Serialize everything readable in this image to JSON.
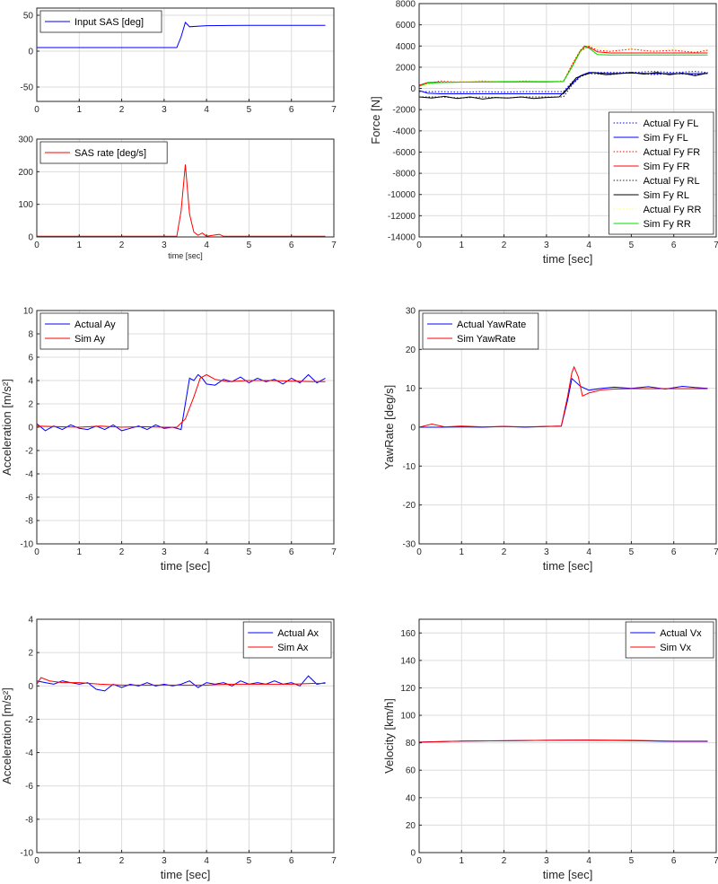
{
  "chart_data": [
    {
      "id": "input-sas",
      "type": "line",
      "xlabel": "",
      "ylabel": "",
      "xlim": [
        0,
        7
      ],
      "ylim": [
        -70,
        60
      ],
      "xticks": [
        0,
        1,
        2,
        3,
        4,
        5,
        6,
        7
      ],
      "yticks": [
        -50,
        0,
        50
      ],
      "grid": true,
      "legend_position": "top-left",
      "series": [
        {
          "name": "Input SAS [deg]",
          "color": "#0000ff",
          "style": "solid",
          "x": [
            0,
            3.3,
            3.4,
            3.5,
            3.55,
            3.6,
            4.0,
            5.0,
            6.0,
            6.8
          ],
          "y": [
            5,
            5,
            20,
            40,
            37,
            34,
            35.5,
            36,
            36,
            36
          ]
        }
      ]
    },
    {
      "id": "sas-rate",
      "type": "line",
      "xlabel": "time [sec]",
      "ylabel": "",
      "xlim": [
        0,
        7
      ],
      "ylim": [
        0,
        300
      ],
      "xticks": [
        0,
        1,
        2,
        3,
        4,
        5,
        6,
        7
      ],
      "yticks": [
        0,
        100,
        200,
        300
      ],
      "grid": true,
      "legend_position": "top-left",
      "series": [
        {
          "name": "SAS rate [deg/s]",
          "color": "#ff0000",
          "style": "solid",
          "x": [
            0,
            3.3,
            3.4,
            3.5,
            3.6,
            3.7,
            3.8,
            3.9,
            4.0,
            4.1,
            4.3,
            4.4,
            6.8
          ],
          "y": [
            2,
            2,
            80,
            222,
            70,
            15,
            5,
            12,
            2,
            4,
            8,
            2,
            2
          ]
        }
      ]
    },
    {
      "id": "force-fy",
      "type": "line",
      "xlabel": "time [sec]",
      "ylabel": "Force [N]",
      "xlim": [
        0,
        7
      ],
      "ylim": [
        -14000,
        8000
      ],
      "xticks": [
        0,
        1,
        2,
        3,
        4,
        5,
        6,
        7
      ],
      "yticks": [
        -14000,
        -12000,
        -10000,
        -8000,
        -6000,
        -4000,
        -2000,
        0,
        2000,
        4000,
        6000,
        8000
      ],
      "grid": true,
      "legend_position": "bottom-right",
      "series": [
        {
          "name": "Actual Fy FL",
          "color": "#0000ff",
          "style": "dotted",
          "x": [
            0,
            0.5,
            1,
            1.5,
            2,
            2.5,
            3,
            3.4,
            3.6,
            3.8,
            4,
            4.5,
            5,
            5.5,
            6,
            6.5,
            6.8
          ],
          "y": [
            -300,
            -300,
            -350,
            -300,
            -350,
            -300,
            -300,
            -300,
            600,
            1200,
            1500,
            1500,
            1500,
            1600,
            1500,
            1600,
            1500
          ]
        },
        {
          "name": "Sim Fy FL",
          "color": "#0000ff",
          "style": "solid",
          "x": [
            0,
            0.2,
            0.5,
            1,
            1.5,
            2,
            2.5,
            3,
            3.4,
            3.6,
            3.8,
            4,
            4.5,
            5,
            5.5,
            6,
            6.5,
            6.8
          ],
          "y": [
            -200,
            -450,
            -500,
            -500,
            -500,
            -500,
            -500,
            -500,
            -500,
            400,
            1200,
            1500,
            1400,
            1450,
            1400,
            1400,
            1400,
            1400
          ]
        },
        {
          "name": "Actual Fy FR",
          "color": "#ff0000",
          "style": "dotted",
          "x": [
            0,
            0.5,
            1,
            1.5,
            2,
            2.5,
            3,
            3.4,
            3.6,
            3.8,
            4,
            4.2,
            4.5,
            5,
            5.5,
            6,
            6.5,
            6.8
          ],
          "y": [
            300,
            700,
            650,
            700,
            650,
            700,
            650,
            700,
            2000,
            3500,
            4000,
            3600,
            3500,
            3700,
            3500,
            3600,
            3400,
            3600
          ]
        },
        {
          "name": "Sim Fy FR",
          "color": "#ff0000",
          "style": "solid",
          "x": [
            0,
            0.2,
            0.5,
            1,
            1.5,
            2,
            2.5,
            3,
            3.4,
            3.6,
            3.8,
            3.9,
            4,
            4.2,
            4.5,
            5,
            5.5,
            6,
            6.5,
            6.8
          ],
          "y": [
            300,
            550,
            600,
            600,
            620,
            620,
            620,
            620,
            650,
            2200,
            3600,
            4000,
            3900,
            3450,
            3350,
            3350,
            3350,
            3350,
            3350,
            3350
          ]
        },
        {
          "name": "Actual Fy RL",
          "color": "#222222",
          "style": "dotted",
          "x": [
            0,
            0.5,
            1,
            1.5,
            2,
            2.5,
            3,
            3.4,
            3.6,
            3.8,
            4,
            4.5,
            5,
            5.5,
            6,
            6.5,
            6.8
          ],
          "y": [
            -800,
            -800,
            -900,
            -800,
            -900,
            -800,
            -800,
            -800,
            300,
            1100,
            1400,
            1300,
            1500,
            1300,
            1400,
            1300,
            1500
          ]
        },
        {
          "name": "Sim Fy RL",
          "color": "#000000",
          "style": "solid",
          "x": [
            0,
            0.3,
            0.6,
            0.9,
            1.2,
            1.5,
            1.8,
            2.1,
            2.4,
            2.7,
            3.0,
            3.3,
            3.5,
            3.7,
            3.9,
            4.1,
            4.4,
            4.7,
            5.0,
            5.3,
            5.6,
            5.9,
            6.2,
            6.5,
            6.8
          ],
          "y": [
            -800,
            -900,
            -750,
            -950,
            -800,
            -1000,
            -850,
            -900,
            -800,
            -950,
            -850,
            -800,
            0,
            1000,
            1300,
            1500,
            1300,
            1400,
            1500,
            1350,
            1500,
            1300,
            1450,
            1200,
            1450
          ]
        },
        {
          "name": "Actual Fy RR",
          "color": "#ffff66",
          "style": "dotted",
          "x": [
            0,
            0.5,
            1,
            1.5,
            2,
            2.5,
            3,
            3.4,
            3.6,
            3.8,
            4,
            4.5,
            5,
            5.5,
            6,
            6.5,
            6.8
          ],
          "y": [
            200,
            600,
            700,
            650,
            700,
            650,
            700,
            650,
            2200,
            3700,
            4100,
            3600,
            3700,
            3600,
            3700,
            3600,
            3700
          ]
        },
        {
          "name": "Sim Fy RR",
          "color": "#00dd00",
          "style": "solid",
          "x": [
            0,
            0.2,
            0.5,
            1,
            1.5,
            2,
            2.5,
            3,
            3.4,
            3.6,
            3.8,
            3.9,
            4,
            4.2,
            4.5,
            5,
            5.5,
            6,
            6.5,
            6.8
          ],
          "y": [
            200,
            500,
            550,
            600,
            620,
            650,
            650,
            650,
            650,
            2000,
            3500,
            3900,
            3800,
            3200,
            3150,
            3150,
            3150,
            3150,
            3150,
            3150
          ]
        }
      ]
    },
    {
      "id": "lateral-accel",
      "type": "line",
      "xlabel": "time [sec]",
      "ylabel": "Acceleration [m/s²]",
      "xlim": [
        0,
        7
      ],
      "ylim": [
        -10,
        10
      ],
      "xticks": [
        0,
        1,
        2,
        3,
        4,
        5,
        6,
        7
      ],
      "yticks": [
        -10,
        -8,
        -6,
        -4,
        -2,
        0,
        2,
        4,
        6,
        8,
        10
      ],
      "grid": true,
      "legend_position": "top-left",
      "series": [
        {
          "name": "Actual Ay",
          "color": "#0000ff",
          "style": "solid",
          "x": [
            0,
            0.2,
            0.4,
            0.6,
            0.8,
            1.0,
            1.2,
            1.4,
            1.6,
            1.8,
            2.0,
            2.2,
            2.4,
            2.6,
            2.8,
            3.0,
            3.2,
            3.4,
            3.5,
            3.6,
            3.7,
            3.8,
            3.9,
            4.0,
            4.2,
            4.4,
            4.6,
            4.8,
            5.0,
            5.2,
            5.4,
            5.6,
            5.8,
            6.0,
            6.2,
            6.4,
            6.6,
            6.8
          ],
          "y": [
            0.3,
            -0.3,
            0.1,
            -0.2,
            0.2,
            -0.1,
            -0.2,
            0.1,
            -0.2,
            0.2,
            -0.3,
            -0.1,
            0.1,
            -0.2,
            0.2,
            -0.1,
            0.0,
            -0.2,
            2.0,
            4.2,
            4.0,
            4.5,
            4.2,
            3.7,
            3.6,
            4.1,
            3.9,
            4.3,
            3.8,
            4.2,
            3.9,
            4.1,
            3.7,
            4.2,
            3.8,
            4.5,
            3.8,
            4.2
          ]
        },
        {
          "name": "Sim Ay",
          "color": "#ff0000",
          "style": "solid",
          "x": [
            0,
            0.5,
            1,
            1.5,
            2,
            2.5,
            3,
            3.3,
            3.5,
            3.7,
            3.85,
            4.0,
            4.2,
            4.5,
            5,
            5.5,
            6,
            6.5,
            6.8
          ],
          "y": [
            0.1,
            0.05,
            0.0,
            0.1,
            0.0,
            0.05,
            0.0,
            0.0,
            0.7,
            2.6,
            4.2,
            4.5,
            4.1,
            3.9,
            4.0,
            4.0,
            3.95,
            3.9,
            3.9
          ]
        }
      ]
    },
    {
      "id": "yaw-rate",
      "type": "line",
      "xlabel": "time [sec]",
      "ylabel": "YawRate [deg/s]",
      "xlim": [
        0,
        7
      ],
      "ylim": [
        -30,
        30
      ],
      "xticks": [
        0,
        1,
        2,
        3,
        4,
        5,
        6,
        7
      ],
      "yticks": [
        -30,
        -20,
        -10,
        0,
        10,
        20,
        30
      ],
      "grid": true,
      "legend_position": "top-left",
      "series": [
        {
          "name": "Actual YawRate",
          "color": "#0000ff",
          "style": "solid",
          "x": [
            0,
            0.5,
            1,
            1.5,
            2,
            2.5,
            3,
            3.35,
            3.5,
            3.6,
            3.8,
            4.0,
            4.3,
            4.6,
            5,
            5.4,
            5.8,
            6.2,
            6.5,
            6.8
          ],
          "y": [
            0,
            0,
            0.1,
            0,
            0.2,
            0,
            0.2,
            0.3,
            7,
            12.5,
            10.5,
            9.5,
            10,
            10.3,
            10,
            10.4,
            9.8,
            10.5,
            10.2,
            10
          ]
        },
        {
          "name": "Sim YawRate",
          "color": "#ff0000",
          "style": "solid",
          "x": [
            0,
            0.3,
            0.6,
            1,
            1.5,
            2,
            2.5,
            3,
            3.35,
            3.5,
            3.6,
            3.65,
            3.75,
            3.85,
            4.0,
            4.3,
            4.6,
            5,
            5.5,
            6,
            6.5,
            6.8
          ],
          "y": [
            0,
            0.8,
            0.1,
            0.3,
            0.1,
            0.2,
            0.1,
            0.2,
            0.3,
            8,
            14,
            15.5,
            13,
            8,
            8.8,
            9.6,
            9.8,
            9.9,
            9.9,
            9.9,
            9.9,
            9.9
          ]
        }
      ]
    },
    {
      "id": "longitudinal-accel",
      "type": "line",
      "xlabel": "time [sec]",
      "ylabel": "Acceleration [m/s²]",
      "xlim": [
        0,
        7
      ],
      "ylim": [
        -10,
        4
      ],
      "xticks": [
        0,
        1,
        2,
        3,
        4,
        5,
        6,
        7
      ],
      "yticks": [
        -10,
        -8,
        -6,
        -4,
        -2,
        0,
        2,
        4
      ],
      "grid": true,
      "legend_position": "top-right",
      "series": [
        {
          "name": "Actual Ax",
          "color": "#0000ff",
          "style": "solid",
          "x": [
            0,
            0.2,
            0.4,
            0.6,
            0.8,
            1.0,
            1.2,
            1.4,
            1.6,
            1.8,
            2.0,
            2.2,
            2.4,
            2.6,
            2.8,
            3.0,
            3.2,
            3.4,
            3.6,
            3.8,
            4.0,
            4.2,
            4.4,
            4.6,
            4.8,
            5.0,
            5.2,
            5.4,
            5.6,
            5.8,
            6.0,
            6.2,
            6.4,
            6.6,
            6.8
          ],
          "y": [
            0.3,
            0.2,
            0.1,
            0.3,
            0.2,
            0.1,
            0.2,
            -0.2,
            -0.3,
            0.1,
            -0.1,
            0.1,
            0.0,
            0.2,
            0.0,
            0.1,
            0.0,
            0.1,
            0.3,
            -0.1,
            0.2,
            0.1,
            0.2,
            0.0,
            0.3,
            0.1,
            0.2,
            0.1,
            0.3,
            0.1,
            0.2,
            0.0,
            0.6,
            0.1,
            0.2
          ]
        },
        {
          "name": "Sim Ax",
          "color": "#ff0000",
          "style": "solid",
          "x": [
            0,
            0.1,
            0.3,
            0.6,
            1,
            1.5,
            2,
            2.5,
            3,
            3.5,
            4,
            4.5,
            5,
            5.5,
            6,
            6.5,
            6.8
          ],
          "y": [
            0.1,
            0.5,
            0.3,
            0.2,
            0.2,
            0.1,
            0.05,
            0.05,
            0.05,
            0.05,
            0.05,
            0.1,
            0.1,
            0.1,
            0.1,
            0.15,
            0.15
          ]
        }
      ]
    },
    {
      "id": "velocity-vx",
      "type": "line",
      "xlabel": "time [sec]",
      "ylabel": "Velocity [km/h]",
      "xlim": [
        0,
        7
      ],
      "ylim": [
        0,
        170
      ],
      "xticks": [
        0,
        1,
        2,
        3,
        4,
        5,
        6,
        7
      ],
      "yticks": [
        0,
        20,
        40,
        60,
        80,
        100,
        120,
        140,
        160
      ],
      "grid": true,
      "legend_position": "top-right",
      "series": [
        {
          "name": "Actual Vx",
          "color": "#0000ff",
          "style": "solid",
          "x": [
            0,
            1,
            2,
            3,
            4,
            5,
            6,
            6.8
          ],
          "y": [
            80.5,
            81.2,
            81.5,
            81.8,
            81.9,
            81.6,
            81.0,
            81.0
          ]
        },
        {
          "name": "Sim Vx",
          "color": "#ff0000",
          "style": "solid",
          "x": [
            0,
            1,
            2,
            3,
            4,
            5,
            6,
            6.8
          ],
          "y": [
            80.4,
            81.2,
            81.5,
            81.8,
            82.0,
            81.8,
            81.3,
            81.2
          ]
        }
      ]
    }
  ]
}
